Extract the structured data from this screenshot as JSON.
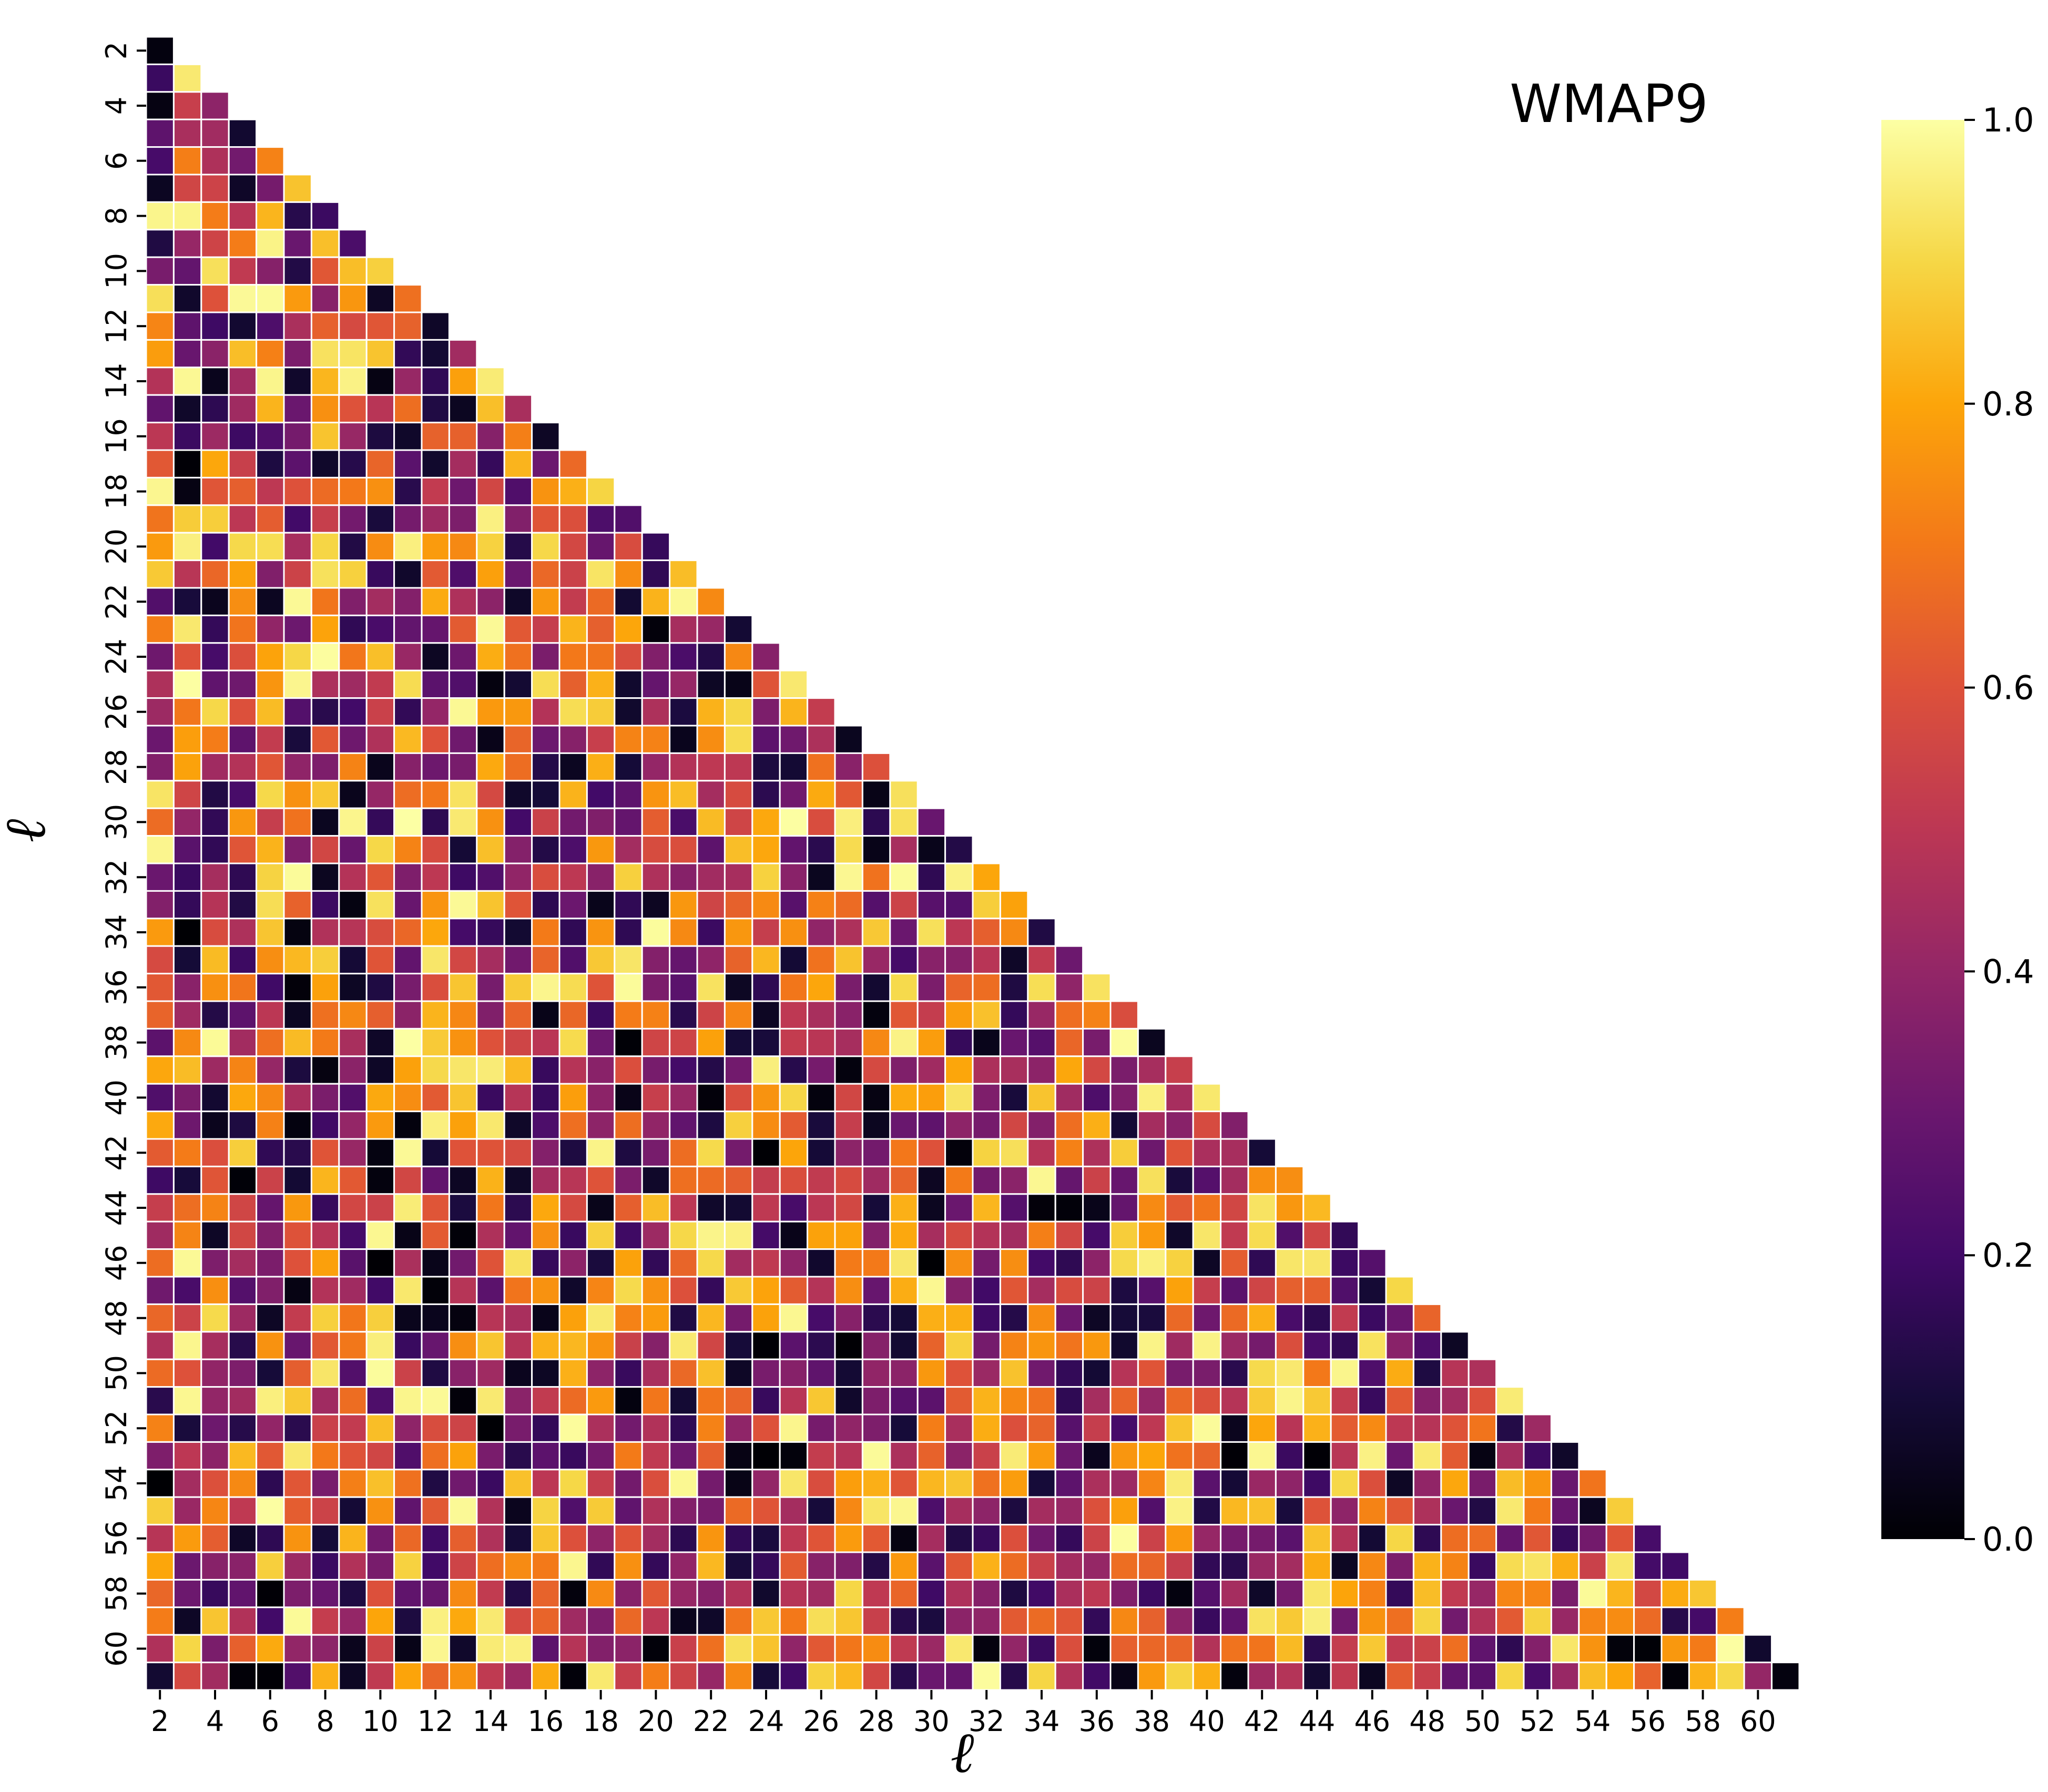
{
  "chart_data": {
    "type": "heatmap",
    "title": "WMAP9",
    "xlabel": "ℓ",
    "ylabel": "ℓ",
    "ell_min": 2,
    "ell_max": 61,
    "mask": "lower-triangle",
    "colormap": "inferno",
    "vmin": 0.0,
    "vmax": 1.0,
    "x_tick_labels": [
      "2",
      "4",
      "6",
      "8",
      "10",
      "12",
      "14",
      "16",
      "18",
      "20",
      "22",
      "24",
      "26",
      "28",
      "30",
      "32",
      "34",
      "36",
      "38",
      "40",
      "42",
      "44",
      "46",
      "48",
      "50",
      "52",
      "54",
      "56",
      "58",
      "60"
    ],
    "y_tick_labels": [
      "2",
      "4",
      "6",
      "8",
      "10",
      "12",
      "14",
      "16",
      "18",
      "20",
      "22",
      "24",
      "26",
      "28",
      "30",
      "32",
      "34",
      "36",
      "38",
      "40",
      "42",
      "44",
      "46",
      "48",
      "50",
      "52",
      "54",
      "56",
      "58",
      "60"
    ],
    "colorbar_ticks": [
      "0.0",
      "0.2",
      "0.4",
      "0.6",
      "0.8",
      "1.0"
    ],
    "grid": false,
    "cell_edgecolor": "#ffffff",
    "values_note": "pseudo-random cell values in [0,1]"
  }
}
